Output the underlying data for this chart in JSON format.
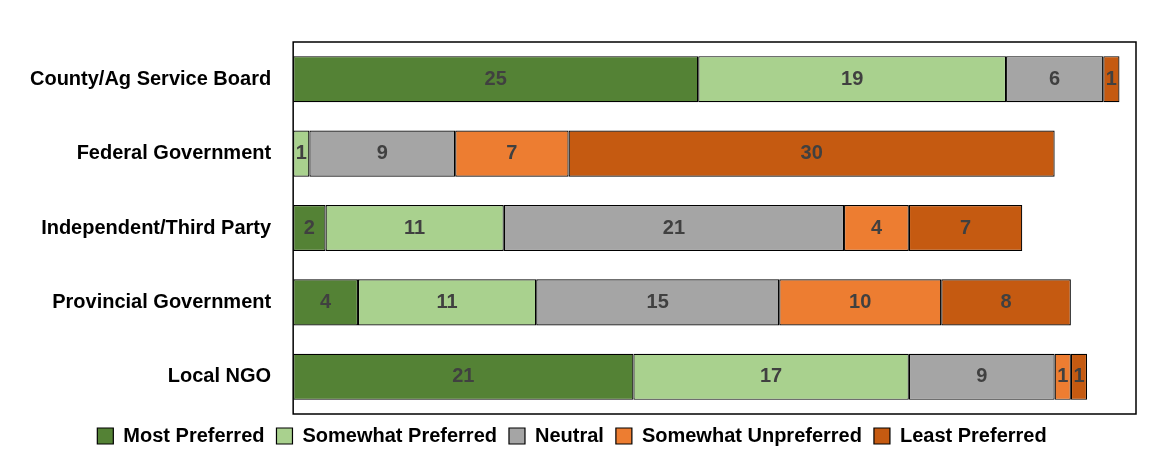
{
  "chart_data": {
    "type": "bar",
    "orientation": "horizontal",
    "stacked": true,
    "data_labels": true,
    "legend": "bottom",
    "grid": false,
    "tick_labels": "y",
    "categories": [
      "County/Ag Service Board",
      "Federal Government",
      "Independent/Third Party",
      "Provincial Government",
      "Local NGO"
    ],
    "series": [
      {
        "name": "Most Preferred",
        "color": "#548235",
        "values": [
          25,
          null,
          2,
          4,
          21
        ]
      },
      {
        "name": "Somewhat Preferred",
        "color": "#a9d18e",
        "values": [
          19,
          1,
          11,
          11,
          17
        ]
      },
      {
        "name": "Neutral",
        "color": "#a5a5a5",
        "values": [
          6,
          9,
          21,
          15,
          9
        ]
      },
      {
        "name": "Somewhat Unpreferred",
        "color": "#ed7d31",
        "values": [
          null,
          7,
          4,
          10,
          1
        ]
      },
      {
        "name": "Least Preferred",
        "color": "#c55a11",
        "values": [
          1,
          30,
          7,
          8,
          1
        ]
      }
    ]
  }
}
